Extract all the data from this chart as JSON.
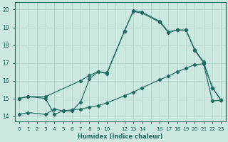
{
  "xlabel": "Humidex (Indice chaleur)",
  "bg_color": "#cbe8e3",
  "grid_color": "#b8d8d4",
  "line_color": "#1e6b5e",
  "xlim": [
    -0.5,
    23.5
  ],
  "ylim": [
    13.7,
    20.4
  ],
  "xticks": [
    0,
    1,
    2,
    3,
    4,
    5,
    6,
    7,
    8,
    9,
    10,
    12,
    13,
    14,
    16,
    17,
    18,
    19,
    20,
    21,
    22,
    23
  ],
  "yticks": [
    14,
    15,
    16,
    17,
    18,
    19,
    20
  ],
  "line1_x": [
    0,
    1,
    3,
    4,
    5,
    6,
    7,
    8,
    9,
    10,
    12,
    13,
    14,
    16,
    17,
    18,
    19,
    20,
    21,
    22,
    23
  ],
  "line1_y": [
    15.0,
    15.1,
    15.0,
    14.1,
    14.3,
    14.3,
    14.8,
    16.1,
    16.5,
    16.4,
    18.8,
    19.9,
    19.8,
    19.3,
    18.7,
    18.85,
    18.85,
    17.7,
    17.0,
    15.6,
    14.9
  ],
  "line2_x": [
    0,
    1,
    3,
    7,
    8,
    9,
    10,
    12,
    13,
    14,
    16,
    17,
    18,
    19,
    20,
    21,
    22,
    23
  ],
  "line2_y": [
    15.0,
    15.1,
    15.1,
    16.0,
    16.3,
    16.5,
    16.45,
    18.8,
    19.95,
    19.85,
    19.35,
    18.75,
    18.85,
    18.85,
    17.75,
    17.05,
    15.6,
    14.9
  ],
  "line3_x": [
    0,
    1,
    3,
    4,
    5,
    6,
    7,
    8,
    9,
    10,
    12,
    13,
    14,
    16,
    17,
    18,
    19,
    20,
    21,
    22,
    23
  ],
  "line3_y": [
    14.1,
    14.2,
    14.1,
    14.4,
    14.3,
    14.35,
    14.4,
    14.5,
    14.6,
    14.75,
    15.15,
    15.35,
    15.6,
    16.05,
    16.25,
    16.5,
    16.7,
    16.9,
    16.95,
    14.85,
    14.9
  ]
}
